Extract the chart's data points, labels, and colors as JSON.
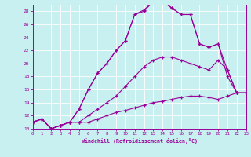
{
  "title": "",
  "xlabel": "Windchill (Refroidissement éolien,°C)",
  "bg_color": "#c8f0f0",
  "line_color": "#990099",
  "grid_color": "#b0d8d8",
  "xlim": [
    0,
    23
  ],
  "ylim": [
    10,
    29
  ],
  "xticks": [
    0,
    1,
    2,
    3,
    4,
    5,
    6,
    7,
    8,
    9,
    10,
    11,
    12,
    13,
    14,
    15,
    16,
    17,
    18,
    19,
    20,
    21,
    22,
    23
  ],
  "yticks": [
    10,
    12,
    14,
    16,
    18,
    20,
    22,
    24,
    26,
    28
  ],
  "curve1_x": [
    0,
    1,
    2,
    3,
    4,
    5,
    6,
    7,
    8,
    9,
    10,
    11,
    12,
    13,
    14,
    15,
    16,
    17,
    18,
    19,
    20,
    21,
    22,
    23
  ],
  "curve1_y": [
    11,
    11.5,
    10,
    10.5,
    11,
    11,
    11,
    11.5,
    12,
    12.5,
    12.8,
    13.2,
    13.6,
    14,
    14.2,
    14.5,
    14.8,
    15,
    15,
    14.8,
    14.5,
    15,
    15.5,
    15.5
  ],
  "curve2_x": [
    0,
    1,
    2,
    3,
    4,
    5,
    6,
    7,
    8,
    9,
    10,
    11,
    12,
    13,
    14,
    15,
    16,
    17,
    18,
    19,
    20,
    21,
    22,
    23
  ],
  "curve2_y": [
    11,
    11.5,
    10,
    10.5,
    11,
    11,
    12,
    13,
    14,
    15,
    16.5,
    18,
    19.5,
    20.5,
    21,
    21,
    20.5,
    20,
    19.5,
    19,
    20.5,
    19,
    15.5,
    15.5
  ],
  "curve3_x": [
    0,
    1,
    2,
    3,
    4,
    5,
    6,
    7,
    8,
    9,
    10,
    11,
    12,
    13,
    14,
    15,
    16,
    17,
    18,
    19,
    20,
    21,
    22,
    23
  ],
  "curve3_y": [
    11,
    11.5,
    10,
    10.5,
    11,
    13,
    16,
    18.5,
    20,
    22,
    23.5,
    27.5,
    28,
    29.5,
    29.5,
    28.5,
    27.5,
    27.5,
    23,
    22.5,
    23,
    19,
    15.5,
    15.5
  ],
  "curve4_x": [
    0,
    1,
    2,
    3,
    4,
    5,
    6,
    7,
    8,
    9,
    10,
    11,
    12,
    13,
    14,
    15,
    16,
    17,
    18,
    19,
    20,
    21,
    22
  ],
  "curve4_y": [
    11,
    11.5,
    10,
    10.5,
    11,
    13,
    16,
    18.5,
    20,
    22,
    23.5,
    27.5,
    28.2,
    29.5,
    29.5,
    28.5,
    27.5,
    27.5,
    23,
    22.5,
    23,
    18,
    15.5
  ]
}
